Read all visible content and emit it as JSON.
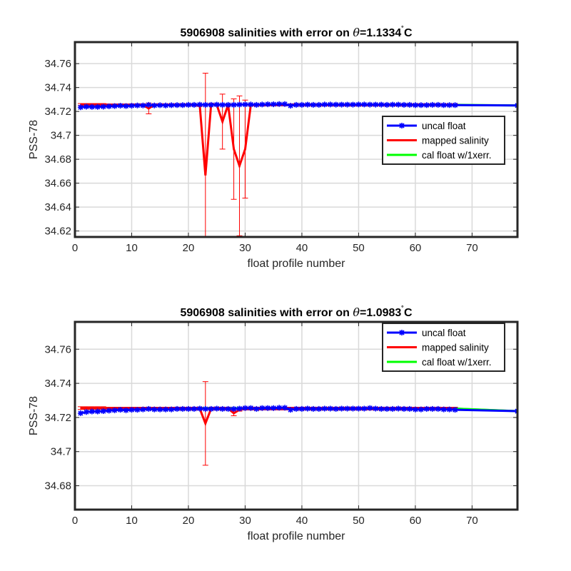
{
  "chart_data": [
    {
      "type": "line",
      "title": "5906908 salinities with error on θ=1.1334˚C",
      "title_parts": {
        "prefix": "5906908 salinities with error on ",
        "symbol": "θ",
        "value": "=1.1334",
        "degree": "˚",
        "unit": "C"
      },
      "xlabel": "float profile number",
      "ylabel": "PSS-78",
      "xlim": [
        0,
        78
      ],
      "ylim": [
        34.615,
        34.778
      ],
      "xticks": [
        0,
        10,
        20,
        30,
        40,
        50,
        60,
        70
      ],
      "yticks": [
        34.62,
        34.64,
        34.66,
        34.68,
        34.7,
        34.72,
        34.74,
        34.76
      ],
      "ytick_labels": [
        "34.62",
        "34.64",
        "34.66",
        "34.68",
        "34.7",
        "34.72",
        "34.74",
        "34.76"
      ],
      "grid": true,
      "legend_position": "middle-right",
      "series": [
        {
          "name": "uncal float",
          "color": "#0000ff",
          "marker": "star",
          "x": [
            1,
            2,
            3,
            4,
            5,
            6,
            7,
            8,
            9,
            10,
            11,
            12,
            13,
            14,
            15,
            16,
            17,
            18,
            19,
            20,
            21,
            22,
            23,
            24,
            25,
            26,
            27,
            28,
            29,
            30,
            31,
            32,
            33,
            34,
            35,
            36,
            37,
            38,
            39,
            40,
            41,
            42,
            43,
            44,
            45,
            46,
            47,
            48,
            49,
            50,
            51,
            52,
            53,
            54,
            55,
            56,
            57,
            58,
            59,
            60,
            61,
            62,
            63,
            64,
            65,
            66,
            67,
            78
          ],
          "values": [
            34.7235,
            34.724,
            34.7238,
            34.7238,
            34.724,
            34.7243,
            34.7245,
            34.7248,
            34.7245,
            34.7248,
            34.725,
            34.725,
            34.7255,
            34.725,
            34.7252,
            34.725,
            34.7252,
            34.7253,
            34.7253,
            34.7255,
            34.7255,
            34.7257,
            34.7255,
            34.7255,
            34.7257,
            34.7255,
            34.7255,
            34.7255,
            34.7257,
            34.7258,
            34.7258,
            34.7255,
            34.7258,
            34.726,
            34.726,
            34.7262,
            34.7262,
            34.7248,
            34.7255,
            34.7255,
            34.7257,
            34.7255,
            34.7255,
            34.7258,
            34.7258,
            34.7257,
            34.7257,
            34.7257,
            34.7257,
            34.7258,
            34.7258,
            34.7257,
            34.7257,
            34.7257,
            34.7255,
            34.7257,
            34.7257,
            34.7255,
            34.7255,
            34.7253,
            34.7253,
            34.7253,
            34.7255,
            34.7255,
            34.7253,
            34.7253,
            34.7253,
            34.725
          ]
        },
        {
          "name": "mapped salinity",
          "color": "#ff0000",
          "x": [
            1,
            2,
            3,
            4,
            5,
            6,
            7,
            8,
            9,
            10,
            11,
            12,
            13,
            14,
            15,
            16,
            17,
            18,
            19,
            20,
            21,
            22,
            23,
            24,
            25,
            26,
            27,
            28,
            29,
            30,
            31,
            32,
            33,
            34,
            35,
            36,
            37,
            38,
            39,
            40,
            41,
            42,
            43,
            44,
            45,
            46,
            47,
            48,
            49,
            50,
            51,
            52,
            53,
            54,
            55,
            56,
            57,
            58,
            59,
            60,
            61,
            62,
            63,
            64,
            65,
            66,
            67
          ],
          "values": [
            34.7258,
            34.7258,
            34.7258,
            34.7258,
            34.7258,
            34.7255,
            34.7255,
            34.7255,
            34.7255,
            34.7255,
            34.7255,
            34.7255,
            34.7225,
            34.7255,
            34.7255,
            34.7255,
            34.7255,
            34.7255,
            34.7255,
            34.7255,
            34.7255,
            34.725,
            34.6665,
            34.726,
            34.7255,
            34.7115,
            34.7255,
            34.6885,
            34.6745,
            34.6885,
            34.7255,
            34.7255,
            34.7255,
            34.7255,
            34.7255,
            34.7255,
            34.7255,
            34.7255,
            34.7255,
            34.7255,
            34.7255,
            34.7255,
            34.7255,
            34.7255,
            34.7255,
            34.7255,
            34.7255,
            34.7255,
            34.7255,
            34.7255,
            34.7255,
            34.7255,
            34.7255,
            34.7255,
            34.7255,
            34.7255,
            34.7255,
            34.7255,
            34.7255,
            34.7255,
            34.7255,
            34.7255,
            34.7255,
            34.7255,
            34.7255,
            34.7255,
            34.7255
          ],
          "error": [
            0.0008,
            0.0008,
            0.0008,
            0.0008,
            0.0008,
            0.0008,
            0.0008,
            0.0008,
            0.0008,
            0.0008,
            0.0008,
            0.0008,
            0.0045,
            0.0008,
            0.0008,
            0.0008,
            0.0008,
            0.0008,
            0.0008,
            0.0008,
            0.0008,
            0.0008,
            0.0855,
            0.0008,
            0.0008,
            0.023,
            0.0008,
            0.042,
            0.0585,
            0.041,
            0.0008,
            0.0008,
            0.0008,
            0.0008,
            0.0008,
            0.0008,
            0.0008,
            0.0008,
            0.0008,
            0.0008,
            0.0008,
            0.0008,
            0.0008,
            0.0008,
            0.0008,
            0.0008,
            0.0008,
            0.0008,
            0.0008,
            0.0008,
            0.0008,
            0.0008,
            0.0008,
            0.0008,
            0.0008,
            0.0008,
            0.0008,
            0.0008,
            0.0008,
            0.0008,
            0.0008,
            0.0008,
            0.0008,
            0.0008,
            0.0008,
            0.0008,
            0.0008
          ]
        },
        {
          "name": "cal float w/1xerr.",
          "color": "#00ff00",
          "x": [
            67,
            78
          ],
          "values": [
            34.7255,
            34.725
          ],
          "error": [
            0.0005,
            0.0005
          ]
        }
      ]
    },
    {
      "type": "line",
      "title": "5906908 salinities with error on θ=1.0983˚C",
      "title_parts": {
        "prefix": "5906908 salinities with error on ",
        "symbol": "θ",
        "value": "=1.0983",
        "degree": "˚",
        "unit": "C"
      },
      "xlabel": "float profile number",
      "ylabel": "PSS-78",
      "xlim": [
        0,
        78
      ],
      "ylim": [
        34.666,
        34.776
      ],
      "xticks": [
        0,
        10,
        20,
        30,
        40,
        50,
        60,
        70
      ],
      "yticks": [
        34.68,
        34.7,
        34.72,
        34.74,
        34.76
      ],
      "ytick_labels": [
        "34.68",
        "34.7",
        "34.72",
        "34.74",
        "34.76"
      ],
      "grid": true,
      "legend_position": "top-right",
      "series": [
        {
          "name": "uncal float",
          "color": "#0000ff",
          "marker": "star",
          "x": [
            1,
            2,
            3,
            4,
            5,
            6,
            7,
            8,
            9,
            10,
            11,
            12,
            13,
            14,
            15,
            16,
            17,
            18,
            19,
            20,
            21,
            22,
            23,
            24,
            25,
            26,
            27,
            28,
            29,
            30,
            31,
            32,
            33,
            34,
            35,
            36,
            37,
            38,
            39,
            40,
            41,
            42,
            43,
            44,
            45,
            46,
            47,
            48,
            49,
            50,
            51,
            52,
            53,
            54,
            55,
            56,
            57,
            58,
            59,
            60,
            61,
            62,
            63,
            64,
            65,
            66,
            67,
            78
          ],
          "values": [
            34.7225,
            34.7232,
            34.7235,
            34.7235,
            34.7237,
            34.724,
            34.7242,
            34.7245,
            34.7242,
            34.7245,
            34.7245,
            34.7247,
            34.725,
            34.7247,
            34.7247,
            34.7247,
            34.7247,
            34.725,
            34.725,
            34.725,
            34.725,
            34.7252,
            34.725,
            34.725,
            34.7252,
            34.725,
            34.725,
            34.725,
            34.7252,
            34.7255,
            34.7255,
            34.725,
            34.7255,
            34.7255,
            34.7255,
            34.7257,
            34.7257,
            34.7245,
            34.725,
            34.725,
            34.7252,
            34.725,
            34.725,
            34.7252,
            34.7252,
            34.725,
            34.7252,
            34.7252,
            34.7252,
            34.7252,
            34.7252,
            34.7255,
            34.7252,
            34.725,
            34.725,
            34.725,
            34.7252,
            34.725,
            34.725,
            34.7247,
            34.7247,
            34.725,
            34.725,
            34.725,
            34.7247,
            34.7247,
            34.7245,
            34.7237
          ]
        },
        {
          "name": "mapped salinity",
          "color": "#ff0000",
          "x": [
            1,
            2,
            3,
            4,
            5,
            6,
            7,
            8,
            9,
            10,
            11,
            12,
            13,
            14,
            15,
            16,
            17,
            18,
            19,
            20,
            21,
            22,
            23,
            24,
            25,
            26,
            27,
            28,
            29,
            30,
            31,
            32,
            33,
            34,
            35,
            36,
            37,
            38,
            39,
            40,
            41,
            42,
            43,
            44,
            45,
            46,
            47,
            48,
            49,
            50,
            51,
            52,
            53,
            54,
            55,
            56,
            57,
            58,
            59,
            60,
            61,
            62,
            63,
            64,
            65,
            66,
            67
          ],
          "values": [
            34.7255,
            34.7255,
            34.7255,
            34.7255,
            34.7255,
            34.7252,
            34.7252,
            34.7252,
            34.7252,
            34.7252,
            34.7252,
            34.7252,
            34.7252,
            34.7252,
            34.7252,
            34.7252,
            34.7252,
            34.7252,
            34.7252,
            34.7252,
            34.7252,
            34.7252,
            34.7165,
            34.7252,
            34.7252,
            34.7252,
            34.7252,
            34.7225,
            34.7245,
            34.7252,
            34.7252,
            34.7252,
            34.7252,
            34.7252,
            34.7252,
            34.7252,
            34.7252,
            34.7252,
            34.7252,
            34.7252,
            34.7252,
            34.7252,
            34.7252,
            34.7252,
            34.7252,
            34.7252,
            34.7252,
            34.7252,
            34.7252,
            34.7252,
            34.7252,
            34.7252,
            34.7252,
            34.7252,
            34.7252,
            34.7252,
            34.7252,
            34.7252,
            34.7252,
            34.7252,
            34.7252,
            34.7252,
            34.7252,
            34.7252,
            34.7252,
            34.7252,
            34.7252
          ],
          "error": [
            0.0008,
            0.0008,
            0.0008,
            0.0008,
            0.0008,
            0.0008,
            0.0008,
            0.0008,
            0.0008,
            0.0008,
            0.0008,
            0.0008,
            0.0008,
            0.0008,
            0.0008,
            0.0008,
            0.0008,
            0.0008,
            0.0008,
            0.0008,
            0.0008,
            0.0008,
            0.0245,
            0.0008,
            0.0008,
            0.0008,
            0.0008,
            0.0015,
            0.0008,
            0.0008,
            0.0008,
            0.0008,
            0.0008,
            0.0008,
            0.0008,
            0.0008,
            0.0008,
            0.0008,
            0.0008,
            0.0008,
            0.0008,
            0.0008,
            0.0008,
            0.0008,
            0.0008,
            0.0008,
            0.0008,
            0.0008,
            0.0008,
            0.0008,
            0.0008,
            0.0008,
            0.0008,
            0.0008,
            0.0008,
            0.0008,
            0.0008,
            0.0008,
            0.0008,
            0.0008,
            0.0008,
            0.0008,
            0.0008,
            0.0008,
            0.0008,
            0.0008,
            0.0008
          ]
        },
        {
          "name": "cal float w/1xerr.",
          "color": "#00ff00",
          "x": [
            1,
            67,
            78
          ],
          "values": [
            34.7255,
            34.7252,
            34.7237
          ],
          "error": [
            0.0006,
            0.0006,
            0.0006
          ]
        }
      ]
    }
  ]
}
